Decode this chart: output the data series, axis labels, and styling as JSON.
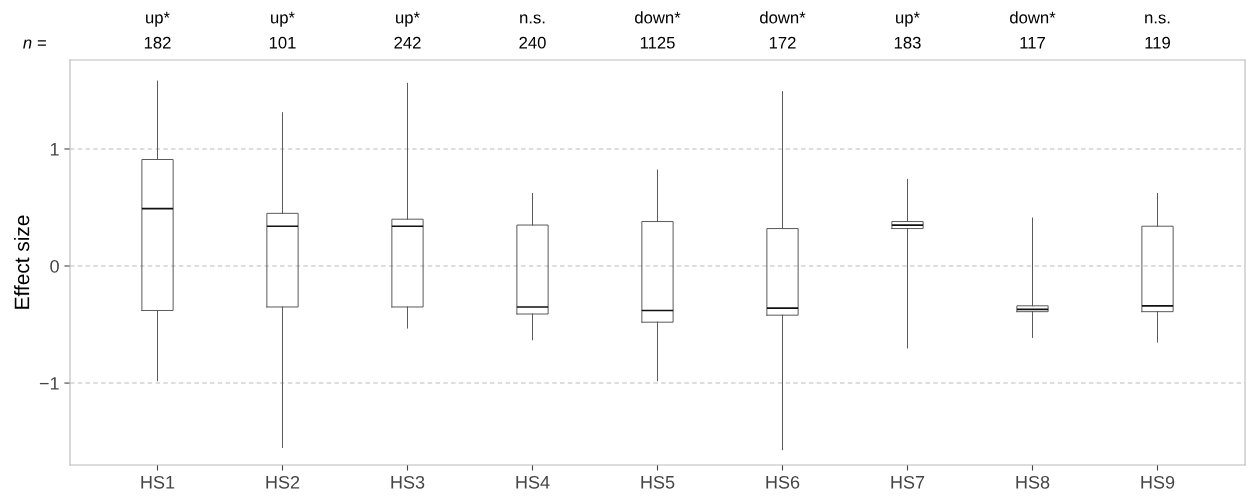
{
  "chart_data": {
    "type": "box",
    "ylabel": "Effect size",
    "categories": [
      "HS1",
      "HS2",
      "HS3",
      "HS4",
      "HS5",
      "HS6",
      "HS7",
      "HS8",
      "HS9"
    ],
    "ylim": [
      -1.7,
      1.76
    ],
    "yticks": [
      {
        "value": -1,
        "label": "−1"
      },
      0,
      1
    ],
    "grid": "y",
    "color": "#555555",
    "boxes": [
      {
        "low": -0.98,
        "q1": -0.38,
        "median": 0.49,
        "q3": 0.91,
        "high": 1.58
      },
      {
        "low": -1.55,
        "q1": -0.35,
        "median": 0.34,
        "q3": 0.45,
        "high": 1.31
      },
      {
        "low": -0.53,
        "q1": -0.35,
        "median": 0.34,
        "q3": 0.4,
        "high": 1.56
      },
      {
        "low": -0.63,
        "q1": -0.41,
        "median": -0.35,
        "q3": 0.35,
        "high": 0.62
      },
      {
        "low": -0.98,
        "q1": -0.48,
        "median": -0.38,
        "q3": 0.38,
        "high": 0.82
      },
      {
        "low": -1.57,
        "q1": -0.42,
        "median": -0.36,
        "q3": 0.32,
        "high": 1.49
      },
      {
        "low": -0.7,
        "q1": 0.32,
        "median": 0.35,
        "q3": 0.38,
        "high": 0.74
      },
      {
        "low": -0.61,
        "q1": -0.39,
        "median": -0.37,
        "q3": -0.34,
        "high": 0.41
      },
      {
        "low": -0.65,
        "q1": -0.39,
        "median": -0.34,
        "q3": 0.34,
        "high": 0.62
      }
    ],
    "annotations": [
      "n =",
      "up*",
      "up*",
      "up*",
      "n.s.",
      "down*",
      "down*",
      "up*",
      "down*",
      "n.s.",
      "182",
      "101",
      "242",
      "240",
      "1125",
      "172",
      "183",
      "117",
      "119"
    ]
  }
}
